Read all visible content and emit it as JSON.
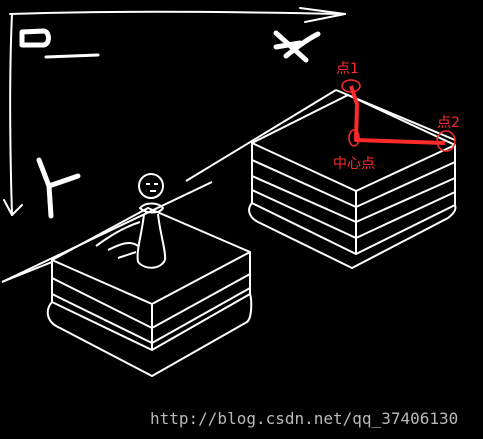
{
  "axes": {
    "x_label": "X",
    "y_label": "Y",
    "origin_label": "O"
  },
  "annotations": {
    "point1": "点1",
    "point2": "点2",
    "center": "中心点"
  },
  "watermark": "http://blog.csdn.net/qq_37406130",
  "colors": {
    "background": "#000000",
    "lines": "#ffffff",
    "annotation": "#ff2a2a"
  }
}
